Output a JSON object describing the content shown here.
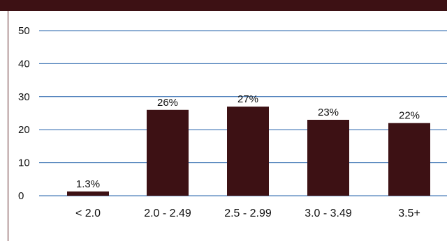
{
  "chart_data": {
    "type": "bar",
    "title": "",
    "xlabel": "",
    "ylabel": "",
    "categories": [
      "< 2.0",
      "2.0 - 2.49",
      "2.5 - 2.99",
      "3.0 - 3.49",
      "3.5+"
    ],
    "values": [
      1.3,
      26,
      27,
      23,
      22
    ],
    "data_labels": [
      "1.3%",
      "26%",
      "27%",
      "23%",
      "22%"
    ],
    "ylim": [
      0,
      50
    ],
    "yticks": [
      0,
      10,
      20,
      30,
      40,
      50
    ],
    "grid": true,
    "legend": "none",
    "bar_color": "#3d1114",
    "grid_color": "#1f5fa8"
  }
}
